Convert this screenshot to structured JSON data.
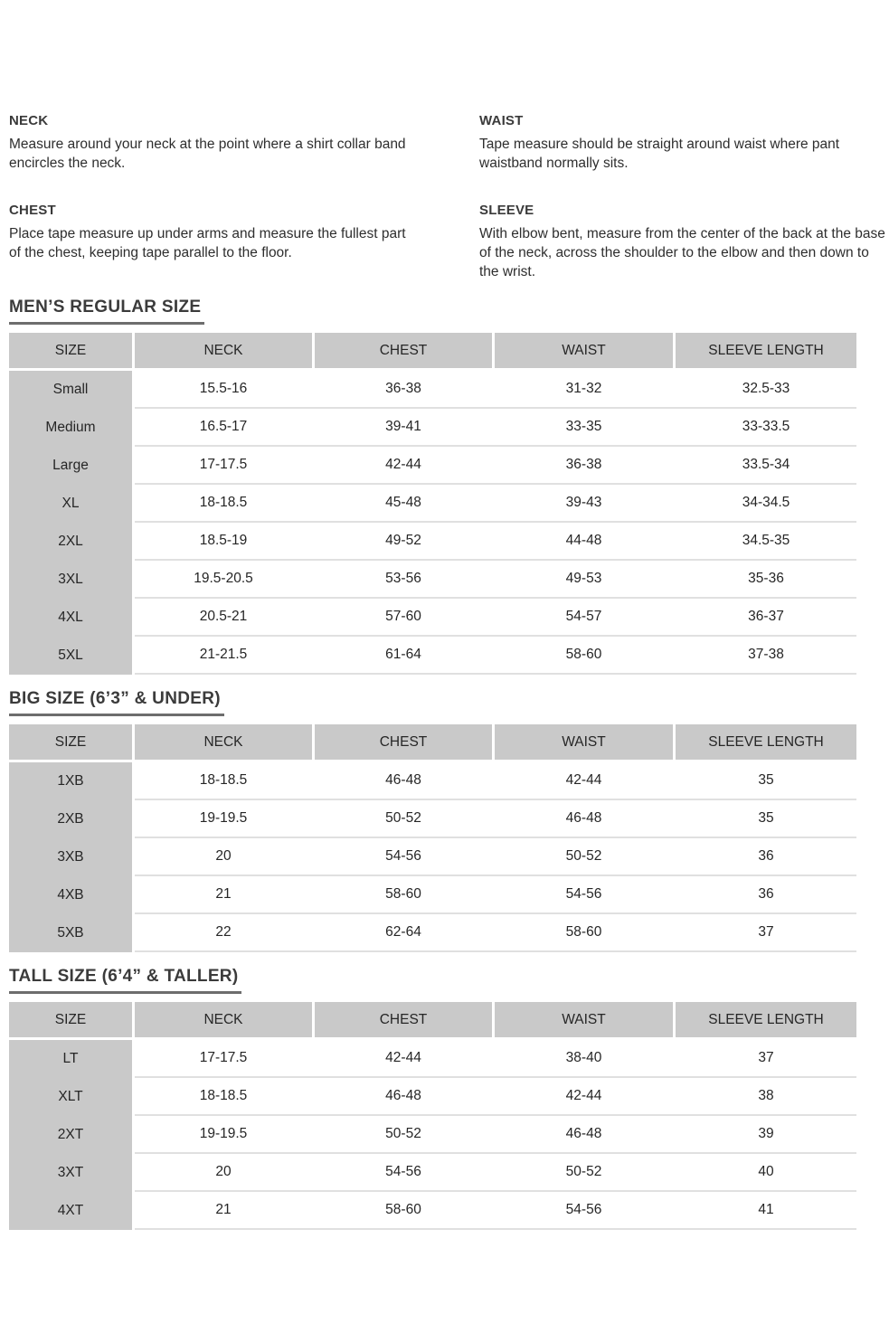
{
  "instructions": {
    "sections": [
      {
        "heading": "NECK",
        "body": "Measure around your neck at the point where a shirt collar band encircles the neck."
      },
      {
        "heading": "CHEST",
        "body": "Place tape measure up under arms and measure the fullest part of the chest, keeping tape parallel to the floor."
      },
      {
        "heading": "WAIST",
        "body": "Tape measure should be straight around waist where pant waistband normally sits."
      },
      {
        "heading": "SLEEVE",
        "body": "With elbow bent, measure from the center of the back at the base of the neck, across the shoulder to the elbow and then down to the wrist."
      }
    ]
  },
  "tables": [
    {
      "title": "MEN’S REGULAR SIZE",
      "columns": [
        "SIZE",
        "NECK",
        "CHEST",
        "WAIST",
        "SLEEVE LENGTH"
      ],
      "rows": [
        [
          "Small",
          "15.5-16",
          "36-38",
          "31-32",
          "32.5-33"
        ],
        [
          "Medium",
          "16.5-17",
          "39-41",
          "33-35",
          "33-33.5"
        ],
        [
          "Large",
          "17-17.5",
          "42-44",
          "36-38",
          "33.5-34"
        ],
        [
          "XL",
          "18-18.5",
          "45-48",
          "39-43",
          "34-34.5"
        ],
        [
          "2XL",
          "18.5-19",
          "49-52",
          "44-48",
          "34.5-35"
        ],
        [
          "3XL",
          "19.5-20.5",
          "53-56",
          "49-53",
          "35-36"
        ],
        [
          "4XL",
          "20.5-21",
          "57-60",
          "54-57",
          "36-37"
        ],
        [
          "5XL",
          "21-21.5",
          "61-64",
          "58-60",
          "37-38"
        ]
      ]
    },
    {
      "title": "BIG SIZE (6’3” & UNDER)",
      "columns": [
        "SIZE",
        "NECK",
        "CHEST",
        "WAIST",
        "SLEEVE LENGTH"
      ],
      "rows": [
        [
          "1XB",
          "18-18.5",
          "46-48",
          "42-44",
          "35"
        ],
        [
          "2XB",
          "19-19.5",
          "50-52",
          "46-48",
          "35"
        ],
        [
          "3XB",
          "20",
          "54-56",
          "50-52",
          "36"
        ],
        [
          "4XB",
          "21",
          "58-60",
          "54-56",
          "36"
        ],
        [
          "5XB",
          "22",
          "62-64",
          "58-60",
          "37"
        ]
      ]
    },
    {
      "title": "TALL SIZE (6’4” & TALLER)",
      "columns": [
        "SIZE",
        "NECK",
        "CHEST",
        "WAIST",
        "SLEEVE LENGTH"
      ],
      "rows": [
        [
          "LT",
          "17-17.5",
          "42-44",
          "38-40",
          "37"
        ],
        [
          "XLT",
          "18-18.5",
          "46-48",
          "42-44",
          "38"
        ],
        [
          "2XT",
          "19-19.5",
          "50-52",
          "46-48",
          "39"
        ],
        [
          "3XT",
          "20",
          "54-56",
          "50-52",
          "40"
        ],
        [
          "4XT",
          "21",
          "58-60",
          "54-56",
          "41"
        ]
      ]
    }
  ],
  "colors": {
    "table_header_bg": "#c9c9c9",
    "row_divider": "#e0e0e0",
    "title_underline": "#6d6d6d",
    "text": "#2e2e2e"
  }
}
